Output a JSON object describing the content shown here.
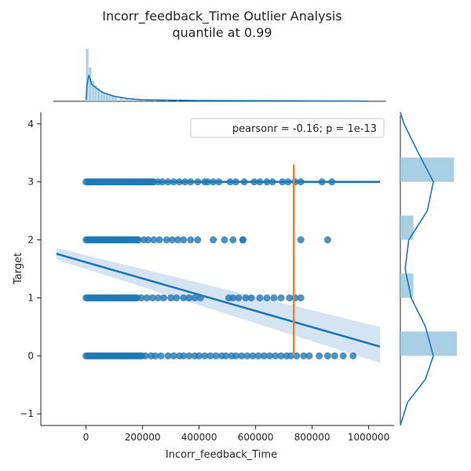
{
  "chart_data": {
    "type": "scatter",
    "title": [
      "Incorr_feedback_Time Outlier Analysis",
      "quantile at 0.99"
    ],
    "xlabel": "Incorr_feedback_Time",
    "ylabel": "Target",
    "xlim": [
      -160000,
      1090000
    ],
    "ylim": [
      -1.2,
      4.2
    ],
    "x_ticks": [
      0,
      200000,
      400000,
      600000,
      800000,
      1000000
    ],
    "y_ticks": [
      -1,
      0,
      1,
      2,
      3,
      4
    ],
    "legend": {
      "text": "pearsonr = -0.16; p = 1e-13",
      "location": "top-right"
    },
    "quantile_line": {
      "quantile": 0.99,
      "x": 735000,
      "y_range": [
        0,
        3.3
      ],
      "color": "#ff7f0e"
    },
    "colors": {
      "points": "#1f77b4",
      "regression": "#1f77b4",
      "ci_band": "#c6dbef",
      "marginal_bars": "#9ecae1"
    },
    "groups": [
      {
        "y": 0,
        "dense_to": 200000,
        "sparse_x": [
          210000,
          230000,
          245000,
          265000,
          290000,
          310000,
          330000,
          345000,
          365000,
          385000,
          400000,
          420000,
          440000,
          460000,
          480000,
          495000,
          515000,
          530000,
          550000,
          570000,
          590000,
          610000,
          630000,
          650000,
          670000,
          690000,
          710000,
          725000,
          745000,
          770000,
          790000,
          825000,
          855000,
          880000,
          910000,
          945000
        ]
      },
      {
        "y": 1,
        "dense_to": 180000,
        "sparse_x": [
          195000,
          215000,
          235000,
          255000,
          275000,
          300000,
          320000,
          345000,
          365000,
          385000,
          405000,
          505000,
          520000,
          540000,
          565000,
          585000,
          615000,
          640000,
          665000,
          690000,
          720000,
          740000,
          760000
        ]
      },
      {
        "y": 2,
        "dense_to": 190000,
        "sparse_x": [
          205000,
          220000,
          240000,
          260000,
          285000,
          305000,
          325000,
          345000,
          370000,
          395000,
          450000,
          490000,
          520000,
          555000,
          555000,
          760000,
          855000
        ]
      },
      {
        "y": 3,
        "dense_to": 240000,
        "sparse_x": [
          255000,
          270000,
          290000,
          310000,
          330000,
          350000,
          370000,
          395000,
          420000,
          430000,
          450000,
          470000,
          510000,
          530000,
          560000,
          595000,
          615000,
          640000,
          660000,
          695000,
          715000,
          740000,
          760000,
          835000,
          870000
        ]
      }
    ],
    "regression_lines": [
      {
        "y_group": 3,
        "x_range": [
          0,
          1040000
        ],
        "y": [
          3.0,
          3.0
        ]
      },
      {
        "y_group": "all",
        "x_range": [
          -105000,
          1040000
        ],
        "y": [
          1.76,
          0.16
        ],
        "ci_band": {
          "x": [
            -105000,
            1040000
          ],
          "upper": [
            1.86,
            0.5
          ],
          "lower": [
            1.66,
            -0.12
          ]
        }
      }
    ],
    "marginal_x": {
      "kde": [
        [
          0,
          0.05
        ],
        [
          3000,
          0.5
        ],
        [
          10000,
          0.85
        ],
        [
          20000,
          0.55
        ],
        [
          40000,
          0.4
        ],
        [
          60000,
          0.28
        ],
        [
          100000,
          0.16
        ],
        [
          150000,
          0.08
        ],
        [
          200000,
          0.05
        ],
        [
          260000,
          0.04
        ],
        [
          400000,
          0.025
        ],
        [
          600000,
          0.018
        ],
        [
          800000,
          0.012
        ],
        [
          1000000,
          0.005
        ]
      ],
      "hist": [
        [
          0,
          1.4
        ],
        [
          10000,
          0.9
        ],
        [
          20000,
          0.55
        ],
        [
          30000,
          0.42
        ],
        [
          40000,
          0.35
        ],
        [
          50000,
          0.28
        ],
        [
          60000,
          0.22
        ],
        [
          70000,
          0.2
        ],
        [
          80000,
          0.16
        ],
        [
          90000,
          0.14
        ],
        [
          100000,
          0.12
        ],
        [
          120000,
          0.1
        ],
        [
          140000,
          0.08
        ],
        [
          160000,
          0.07
        ],
        [
          180000,
          0.06
        ],
        [
          200000,
          0.05
        ],
        [
          240000,
          0.04
        ],
        [
          280000,
          0.035
        ],
        [
          320000,
          0.03
        ],
        [
          400000,
          0.025
        ],
        [
          500000,
          0.02
        ],
        [
          600000,
          0.018
        ],
        [
          700000,
          0.015
        ],
        [
          800000,
          0.012
        ],
        [
          900000,
          0.01
        ]
      ]
    },
    "marginal_y": {
      "bars": [
        {
          "y": 0,
          "height": 1.0
        },
        {
          "y": 1,
          "height": 0.23
        },
        {
          "y": 2,
          "height": 0.23
        },
        {
          "y": 3,
          "height": 0.95
        }
      ],
      "kde": [
        [
          -1.2,
          0.0
        ],
        [
          -0.8,
          0.12
        ],
        [
          -0.4,
          0.42
        ],
        [
          0.0,
          0.55
        ],
        [
          0.5,
          0.42
        ],
        [
          1.0,
          0.18
        ],
        [
          1.5,
          0.08
        ],
        [
          2.0,
          0.14
        ],
        [
          2.5,
          0.45
        ],
        [
          3.0,
          0.55
        ],
        [
          3.5,
          0.3
        ],
        [
          4.0,
          0.06
        ],
        [
          4.2,
          0.0
        ]
      ]
    }
  }
}
